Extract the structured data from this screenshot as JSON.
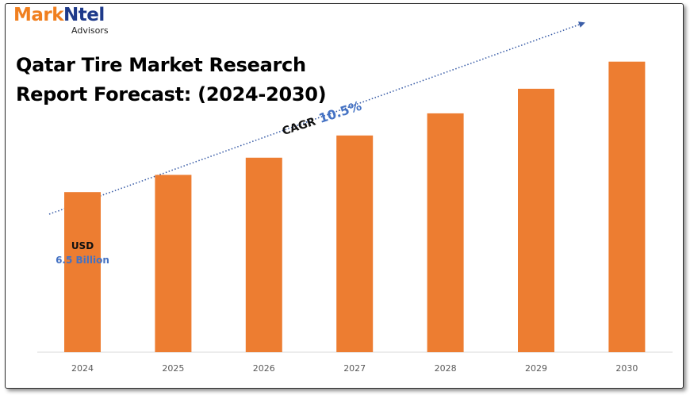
{
  "brand": {
    "logo_part1": "Mark",
    "logo_part2": "Ntel",
    "logo_sub": "Advisors",
    "colors": {
      "mark": "#f07f1f",
      "ntel": "#1e3a8a"
    }
  },
  "chart_data": {
    "type": "bar",
    "title_line1": "Qatar Tire Market Research",
    "title_line2": "Report Forecast: (2024-2030)",
    "categories": [
      "2024",
      "2025",
      "2026",
      "2027",
      "2028",
      "2029",
      "2030"
    ],
    "values": [
      6.5,
      7.2,
      7.9,
      8.8,
      9.7,
      10.7,
      11.8
    ],
    "ylim": [
      0,
      12.5
    ],
    "bar_color": "#ed7d31",
    "first_bar_label": {
      "line1": "USD",
      "line2": "6.5 Billion"
    },
    "cagr": {
      "label": "CAGR",
      "value": "10.5%"
    },
    "grid": false,
    "legend": "none"
  }
}
